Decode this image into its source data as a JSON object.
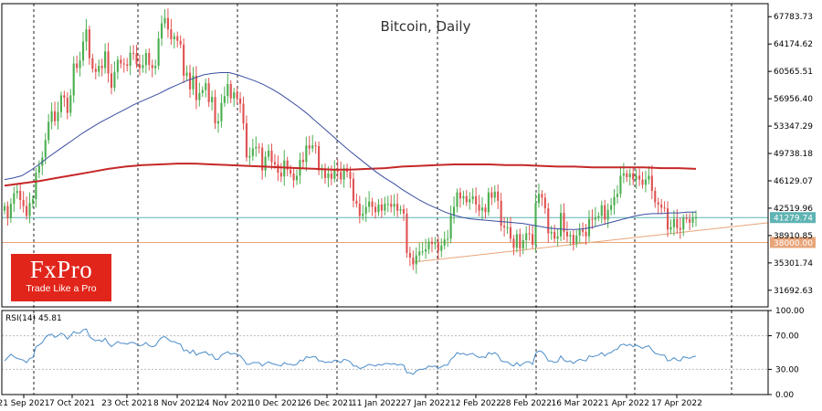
{
  "logo": {
    "name": "FxPro",
    "tagline": "Trade Like a Pro"
  },
  "colors": {
    "candle_up": "#4caf50",
    "candle_down": "#e05353",
    "ma_fast": "#3a4ea0",
    "ma_slow": "#c62828",
    "level_current": "#5fb3b3",
    "level_support": "#e8a57a",
    "rsi": "#4a8cc9",
    "grid": "#222222"
  },
  "chart_data": [
    {
      "type": "candlestick",
      "title": "Bitcoin, Daily",
      "ylim": [
        29500,
        69500
      ],
      "y_ticks": [
        "67783.73",
        "64174.62",
        "60565.51",
        "56956.40",
        "53347.29",
        "49738.18",
        "46129.07",
        "42519.96",
        "38910.85",
        "35301.74",
        "31692.63"
      ],
      "x_ticks": [
        "21 Sep 2021",
        "7 Oct 2021",
        "23 Oct 2021",
        "8 Nov 2021",
        "24 Nov 2021",
        "10 Dec 2021",
        "26 Dec 2021",
        "11 Jan 2022",
        "27 Jan 2022",
        "12 Feb 2022",
        "28 Feb 2022",
        "16 Mar 2022",
        "1 Apr 2022",
        "17 Apr 2022"
      ],
      "price_labels": [
        {
          "text": "41279.74",
          "value": 41279.74
        },
        {
          "text": "38000.00",
          "value": 38000
        }
      ],
      "close": [
        42800,
        41200,
        43100,
        44500,
        44800,
        43600,
        42800,
        41500,
        43200,
        43700,
        47200,
        48100,
        49200,
        51500,
        53900,
        55300,
        54000,
        55200,
        57400,
        57100,
        55100,
        57400,
        61600,
        61000,
        62000,
        64500,
        66100,
        62300,
        60900,
        60500,
        61300,
        61000,
        63200,
        60300,
        58400,
        60500,
        62100,
        61600,
        61500,
        61300,
        63000,
        62900,
        61500,
        61000,
        61400,
        63000,
        61400,
        61000,
        61300,
        64900,
        66900,
        67600,
        66100,
        64800,
        65200,
        64600,
        64100,
        60000,
        60400,
        58200,
        60000,
        56800,
        57700,
        58100,
        59000,
        56500,
        57200,
        53700,
        54000,
        56400,
        57300,
        58900,
        57000,
        57800,
        57000,
        56300,
        53700,
        49200,
        49400,
        50400,
        50600,
        50500,
        47500,
        49300,
        50100,
        48600,
        48300,
        47200,
        46700,
        48800,
        47600,
        47100,
        46200,
        46800,
        48900,
        48600,
        50800,
        50400,
        50800,
        50700,
        47500,
        47600,
        46500,
        47100,
        46400,
        47700,
        47300,
        46300,
        47800,
        47300,
        46400,
        43500,
        43100,
        41500,
        41800,
        42700,
        43400,
        42700,
        42000,
        43000,
        42200,
        43100,
        43100,
        42700,
        43100,
        42200,
        42400,
        41800,
        36600,
        36000,
        35100,
        36300,
        36800,
        36800,
        37100,
        38100,
        37800,
        38000,
        36900,
        37600,
        38400,
        38500,
        41600,
        42700,
        44600,
        43800,
        44100,
        43300,
        43700,
        44100,
        43000,
        42200,
        42600,
        42000,
        44600,
        43900,
        44700,
        43500,
        40200,
        40000,
        40000,
        38500,
        37300,
        39100,
        37200,
        38300,
        39200,
        39100,
        37700,
        43200,
        44400,
        43900,
        42500,
        39200,
        39400,
        38500,
        38800,
        41900,
        39400,
        38800,
        39000,
        37800,
        38900,
        39700,
        39400,
        38800,
        41100,
        41000,
        41300,
        41500,
        42900,
        41000,
        42300,
        42900,
        44000,
        44400,
        46800,
        47100,
        46600,
        47100,
        46300,
        46800,
        46300,
        45600,
        46300,
        46800,
        44800,
        43300,
        43000,
        42600,
        42500,
        39700,
        40000,
        41100,
        39900,
        39700,
        41200,
        41100,
        40600,
        41200,
        41279.74
      ],
      "ma_fast": [
        46300,
        46500,
        46800,
        47500,
        48300,
        49200,
        50000,
        50800,
        51600,
        52400,
        53100,
        53800,
        54400,
        55000,
        55600,
        56200,
        56700,
        57200,
        57700,
        58300,
        58800,
        59300,
        59700,
        60100,
        60300,
        60400,
        60400,
        60100,
        59700,
        59300,
        58800,
        58200,
        57500,
        56700,
        55900,
        55000,
        54000,
        53000,
        52000,
        51000,
        50000,
        49100,
        48200,
        47300,
        46500,
        45800,
        45000,
        44300,
        43600,
        43000,
        42500,
        42000,
        41600,
        41300,
        41100,
        41000,
        40900,
        40800,
        40700,
        40600,
        40500,
        40300,
        40100,
        39900,
        39800,
        39700,
        39700,
        39800,
        40000,
        40300,
        40600,
        40900,
        41200,
        41500,
        41700,
        41800,
        41800,
        41900,
        41900,
        42000,
        42000
      ],
      "ma_slow": [
        45500,
        45800,
        46100,
        46500,
        46900,
        47300,
        47700,
        48000,
        48200,
        48300,
        48400,
        48400,
        48300,
        48200,
        48100,
        48000,
        47900,
        47800,
        47700,
        47600,
        47600,
        47700,
        47800,
        48000,
        48100,
        48200,
        48300,
        48300,
        48300,
        48200,
        48200,
        48100,
        48000,
        48000,
        47900,
        47900,
        47900,
        47900,
        47800,
        47800,
        47700
      ],
      "support_line": [
        {
          "x": "11 Jan 2022",
          "value": 35400
        },
        {
          "x": "17 Apr 2022",
          "value": 40600
        }
      ]
    },
    {
      "type": "line",
      "title": "RSI(14) 45.81",
      "ylim": [
        0,
        100
      ],
      "y_ticks": [
        "100.00",
        "70.00",
        "30.00",
        "0.00"
      ],
      "values": [
        40,
        44,
        48,
        45,
        43,
        42,
        41,
        38,
        43,
        44,
        57,
        59,
        62,
        68,
        71,
        72,
        68,
        70,
        73,
        71,
        66,
        70,
        75,
        73,
        73,
        77,
        78,
        69,
        66,
        64,
        65,
        63,
        67,
        61,
        57,
        60,
        63,
        61,
        61,
        60,
        62,
        62,
        60,
        58,
        59,
        62,
        58,
        57,
        58,
        64,
        68,
        69,
        66,
        63,
        63,
        61,
        60,
        52,
        53,
        49,
        53,
        47,
        49,
        50,
        51,
        47,
        48,
        42,
        42,
        47,
        49,
        51,
        48,
        49,
        48,
        46,
        42,
        36,
        36,
        38,
        38,
        38,
        34,
        37,
        39,
        37,
        36,
        35,
        34,
        38,
        36,
        36,
        35,
        36,
        41,
        40,
        45,
        44,
        45,
        45,
        40,
        40,
        38,
        39,
        38,
        41,
        40,
        38,
        42,
        41,
        39,
        34,
        34,
        31,
        32,
        34,
        36,
        35,
        34,
        36,
        35,
        37,
        37,
        36,
        37,
        35,
        36,
        35,
        26,
        26,
        24,
        28,
        30,
        30,
        31,
        34,
        33,
        34,
        31,
        33,
        35,
        35,
        42,
        45,
        50,
        48,
        49,
        47,
        48,
        49,
        46,
        44,
        45,
        44,
        50,
        48,
        50,
        47,
        40,
        39,
        39,
        36,
        34,
        38,
        34,
        37,
        39,
        39,
        36,
        49,
        52,
        51,
        47,
        40,
        40,
        38,
        39,
        46,
        41,
        39,
        40,
        37,
        40,
        42,
        41,
        40,
        46,
        45,
        46,
        47,
        50,
        46,
        49,
        50,
        53,
        54,
        59,
        60,
        58,
        60,
        57,
        59,
        57,
        55,
        57,
        58,
        53,
        49,
        48,
        47,
        47,
        40,
        41,
        44,
        41,
        40,
        45,
        44,
        43,
        45,
        45.81
      ]
    }
  ]
}
